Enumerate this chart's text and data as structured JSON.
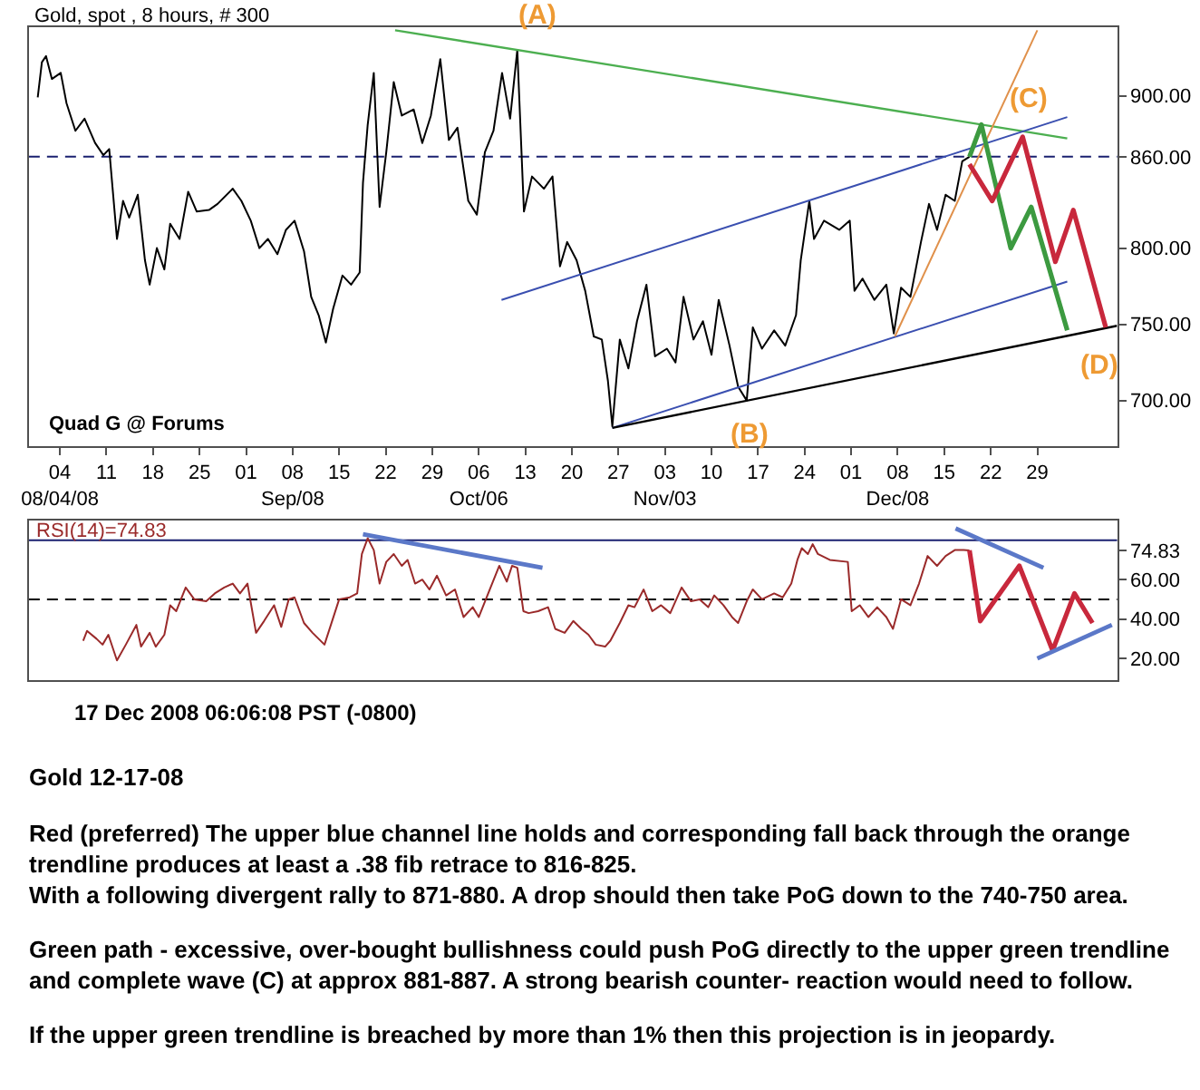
{
  "chart_data": [
    {
      "type": "line",
      "title": "Gold, spot , 8 hours, # 300",
      "xlim": [
        "2008-07-30T08:00",
        "2009-01-10T00:00"
      ],
      "xticks": [
        {
          "value": "2008-08-04",
          "label": "04\n08/04/08"
        },
        {
          "value": "2008-08-11",
          "label": "11"
        },
        {
          "value": "2008-08-18",
          "label": "18"
        },
        {
          "value": "2008-08-25",
          "label": "25"
        },
        {
          "value": "2008-09-01",
          "label": "01"
        },
        {
          "value": "2008-09-08",
          "label": "08\nSep/08"
        },
        {
          "value": "2008-09-15",
          "label": "15"
        },
        {
          "value": "2008-09-22",
          "label": "22"
        },
        {
          "value": "2008-09-29",
          "label": "29"
        },
        {
          "value": "2008-10-06",
          "label": "06\nOct/06"
        },
        {
          "value": "2008-10-13",
          "label": "13"
        },
        {
          "value": "2008-10-20",
          "label": "20"
        },
        {
          "value": "2008-10-27",
          "label": "27"
        },
        {
          "value": "2008-11-03",
          "label": "03\nNov/03"
        },
        {
          "value": "2008-11-10",
          "label": "10"
        },
        {
          "value": "2008-11-17",
          "label": "17"
        },
        {
          "value": "2008-11-24",
          "label": "24"
        },
        {
          "value": "2008-12-01",
          "label": "01"
        },
        {
          "value": "2008-12-08",
          "label": "08\nDec/08"
        },
        {
          "value": "2008-12-15",
          "label": "15"
        },
        {
          "value": "2008-12-22",
          "label": "22"
        },
        {
          "value": "2008-12-29",
          "label": "29"
        }
      ],
      "ylim": [
        670,
        945
      ],
      "yticks": [
        {
          "value": 700,
          "label": "700.00"
        },
        {
          "value": 750,
          "label": "750.00"
        },
        {
          "value": 800,
          "label": "800.00"
        },
        {
          "value": 860,
          "label": "860.00"
        },
        {
          "value": 900,
          "label": "900.00"
        }
      ],
      "ref_lines": [
        {
          "axis": "y",
          "value": 860,
          "color": "#1a2070",
          "line_style": "dashed"
        }
      ],
      "annotations": [
        "Quad G @ Forums",
        {
          "text": "(A)",
          "x": "2008-10-11T19:00",
          "y": 930
        },
        {
          "text": "(B)",
          "x": "2008-11-15T07:00",
          "y": 700
        },
        {
          "text": "(C)",
          "x": "2008-12-26T19:00",
          "y": 873
        },
        {
          "text": "(D)",
          "x": "2009-01-02T12:00",
          "y": 746
        }
      ],
      "series": [
        {
          "color": "#000000",
          "x": [
            "2008-07-31T16:00",
            "2008-08-01T07:00",
            "2008-08-01T22:00",
            "2008-08-02T19:00",
            "2008-08-04T03:00",
            "2008-08-05T00:00",
            "2008-08-06T08:00",
            "2008-08-07T17:00",
            "2008-08-09T07:00",
            "2008-08-10T13:00",
            "2008-08-11T10:00",
            "2008-08-12T14:00",
            "2008-08-13T12:00",
            "2008-08-14T10:00",
            "2008-08-15T17:00",
            "2008-08-16T19:00",
            "2008-08-17T12:00",
            "2008-08-18T14:00",
            "2008-08-19T17:00",
            "2008-08-20T14:00",
            "2008-08-22T00:00",
            "2008-08-23T07:00",
            "2008-08-24T14:00",
            "2008-08-26T10:00",
            "2008-08-27T17:00",
            "2008-08-30T00:00",
            "2008-08-31T07:00",
            "2008-09-01T17:00",
            "2008-09-03T00:00",
            "2008-09-04T07:00",
            "2008-09-05T17:00",
            "2008-09-07T00:00",
            "2008-09-08T07:00",
            "2008-09-09T17:00",
            "2008-09-10T19:00",
            "2008-09-11T22:00",
            "2008-09-13T00:00",
            "2008-09-14T02:00",
            "2008-09-15T12:00",
            "2008-09-16T19:00",
            "2008-09-18T02:00",
            "2008-09-18T14:00",
            "2008-09-19T07:00",
            "2008-09-20T05:00",
            "2008-09-21T02:00",
            "2008-09-22T02:00",
            "2008-09-23T05:00",
            "2008-09-24T10:00",
            "2008-09-26T05:00",
            "2008-09-27T12:00",
            "2008-09-28T19:00",
            "2008-09-30T05:00",
            "2008-10-01T12:00",
            "2008-10-02T19:00",
            "2008-10-04T10:00",
            "2008-10-05T17:00",
            "2008-10-06T22:00",
            "2008-10-08T05:00",
            "2008-10-09T12:00",
            "2008-10-10T17:00",
            "2008-10-11T19:00",
            "2008-10-12T19:00",
            "2008-10-14T00:00",
            "2008-10-15T19:00",
            "2008-10-17T02:00",
            "2008-10-18T05:00",
            "2008-10-19T07:00",
            "2008-10-20T17:00",
            "2008-10-22T00:00",
            "2008-10-23T07:00",
            "2008-10-24T12:00",
            "2008-10-25T10:00",
            "2008-10-26T02:00",
            "2008-10-27T05:00",
            "2008-10-28T12:00",
            "2008-10-29T19:00",
            "2008-10-31T05:00",
            "2008-11-01T12:00",
            "2008-11-03T07:00",
            "2008-11-04T14:00",
            "2008-11-05T19:00",
            "2008-11-07T07:00",
            "2008-11-08T17:00",
            "2008-11-10T00:00",
            "2008-11-11T02:00",
            "2008-11-12T17:00",
            "2008-11-14T00:00",
            "2008-11-15T07:00",
            "2008-11-16T05:00",
            "2008-11-17T14:00",
            "2008-11-19T10:00",
            "2008-11-21T02:00",
            "2008-11-22T17:00",
            "2008-11-23T10:00",
            "2008-11-24T17:00",
            "2008-11-25T10:00",
            "2008-11-26T22:00",
            "2008-11-29T05:00",
            "2008-11-30T19:00",
            "2008-12-01T12:00",
            "2008-12-02T17:00",
            "2008-12-04T12:00",
            "2008-12-06T07:00",
            "2008-12-07T10:00",
            "2008-12-08T12:00",
            "2008-12-09T22:00",
            "2008-12-11T12:00",
            "2008-12-12T17:00",
            "2008-12-13T22:00",
            "2008-12-15T05:00",
            "2008-12-16T14:00",
            "2008-12-17T17:00",
            "2008-12-18T19:00"
          ],
          "values": [
            899,
            922,
            926,
            911,
            915,
            895,
            877,
            885,
            869,
            861,
            865,
            806,
            831,
            820,
            835,
            792,
            776,
            800,
            786,
            816,
            806,
            837,
            824,
            825,
            829,
            839,
            831,
            818,
            800,
            806,
            796,
            812,
            818,
            798,
            768,
            756,
            738,
            760,
            782,
            776,
            784,
            843,
            881,
            915,
            827,
            863,
            909,
            887,
            891,
            869,
            887,
            924,
            871,
            879,
            831,
            822,
            863,
            877,
            915,
            885,
            930,
            824,
            847,
            839,
            847,
            788,
            804,
            792,
            772,
            742,
            740,
            713,
            683,
            740,
            721,
            752,
            776,
            729,
            734,
            725,
            768,
            740,
            752,
            730,
            766,
            736,
            709,
            700,
            748,
            734,
            746,
            736,
            756,
            792,
            831,
            806,
            818,
            812,
            818,
            772,
            780,
            766,
            776,
            744,
            774,
            768,
            804,
            829,
            812,
            835,
            831,
            857,
            860
          ]
        },
        {
          "color": "#4caf50",
          "x": [
            "2008-09-23T10:00",
            "2009-01-02T12:00"
          ],
          "values": [
            943,
            872
          ]
        },
        {
          "color": "#3a4fb0",
          "x": [
            "2008-10-09T10:00",
            "2009-01-02T12:00"
          ],
          "values": [
            766,
            886
          ]
        },
        {
          "color": "#3a4fb0",
          "x": [
            "2008-10-26T02:00",
            "2009-01-02T12:00"
          ],
          "values": [
            682,
            778
          ]
        },
        {
          "color": "#000000",
          "x": [
            "2008-10-26T02:00",
            "2009-01-10T00:00"
          ],
          "values": [
            682,
            749
          ]
        },
        {
          "color": "#e0904a",
          "x": [
            "2008-12-07T14:00",
            "2008-12-29T00:00"
          ],
          "values": [
            742,
            943
          ]
        },
        {
          "color": "#3c9a40",
          "x": [
            "2008-12-18T19:00",
            "2008-12-20T14:00",
            "2008-12-25T00:00",
            "2008-12-28T02:00",
            "2009-01-02T12:00"
          ],
          "values": [
            860,
            881,
            800,
            827,
            746
          ]
        },
        {
          "color": "#c8283c",
          "x": [
            "2008-12-18T19:00",
            "2008-12-22T05:00",
            "2008-12-26T19:00",
            "2008-12-31T17:00",
            "2009-01-03T10:00",
            "2009-01-08T07:00"
          ],
          "values": [
            855,
            831,
            873,
            791,
            825,
            748
          ]
        }
      ]
    },
    {
      "type": "line",
      "title": "RSI(14)=74.83",
      "tick_labels": "y",
      "xlim": [
        "2008-07-30T08:00",
        "2009-01-10T00:00"
      ],
      "ylim": [
        9,
        90
      ],
      "yticks": [
        {
          "value": 20,
          "label": "20.00"
        },
        {
          "value": 40,
          "label": "40.00"
        },
        {
          "value": 60,
          "label": "60.00"
        },
        {
          "value": 74.83,
          "label": "74.83"
        }
      ],
      "ref_lines": [
        {
          "axis": "y",
          "value": 80,
          "color": "#1a2070",
          "line_style": "solid"
        },
        {
          "axis": "y",
          "value": 50,
          "color": "#000000",
          "line_style": "dashed"
        }
      ],
      "annotations": [
        "17 Dec 2008 06:06:08 PST (-0800)",
        "Gold 12-17-08",
        "Red (preferred) The upper blue channel line holds and corresponding fall back through the orange\ntrendline produces at least a .38 fib retrace to 816-825.\nWith a following divergent rally to 871-880. A drop should then take PoG down to the 740-750 area.",
        "Green path - excessive, over-bought bullishness could push PoG directly to the upper green trendline\nand complete wave (C) at approx 881-887. A strong bearish counter- reaction would need to follow.",
        "If the upper green trendline is breached by more than 1% then this projection is in jeopardy."
      ],
      "series": [
        {
          "color": "#9a2a2a",
          "x": [
            "2008-08-07T12:00",
            "2008-08-08T02:00",
            "2008-08-09T12:00",
            "2008-08-10T10:00",
            "2008-08-11T07:00",
            "2008-08-12T14:00",
            "2008-08-13T22:00",
            "2008-08-15T12:00",
            "2008-08-16T05:00",
            "2008-08-17T12:00",
            "2008-08-18T10:00",
            "2008-08-19T17:00",
            "2008-08-20T14:00",
            "2008-08-21T12:00",
            "2008-08-22T22:00",
            "2008-08-24T05:00",
            "2008-08-26T00:00",
            "2008-08-27T07:00",
            "2008-08-28T17:00",
            "2008-08-30T00:00",
            "2008-08-31T02:00",
            "2008-09-01T05:00",
            "2008-09-02T12:00",
            "2008-09-03T17:00",
            "2008-09-05T05:00",
            "2008-09-06T07:00",
            "2008-09-07T10:00",
            "2008-09-08T07:00",
            "2008-09-09T17:00",
            "2008-09-11T00:00",
            "2008-09-12T19:00",
            "2008-09-15T00:00",
            "2008-09-16T14:00",
            "2008-09-17T17:00",
            "2008-09-18T10:00",
            "2008-09-19T07:00",
            "2008-09-20T05:00",
            "2008-09-21T02:00",
            "2008-09-22T02:00",
            "2008-09-23T05:00",
            "2008-09-24T10:00",
            "2008-09-25T07:00",
            "2008-09-26T10:00",
            "2008-09-27T12:00",
            "2008-09-28T14:00",
            "2008-09-29T17:00",
            "2008-10-01T02:00",
            "2008-10-02T10:00",
            "2008-10-03T17:00",
            "2008-10-05T02:00",
            "2008-10-06T00:00",
            "2008-10-07T07:00",
            "2008-10-09T02:00",
            "2008-10-10T05:00",
            "2008-10-11T00:00",
            "2008-10-11T19:00",
            "2008-10-12T17:00",
            "2008-10-13T12:00",
            "2008-10-14T22:00",
            "2008-10-16T10:00",
            "2008-10-17T12:00",
            "2008-10-18T22:00",
            "2008-10-20T05:00",
            "2008-10-21T10:00",
            "2008-10-22T12:00",
            "2008-10-23T14:00",
            "2008-10-25T00:00",
            "2008-10-25T19:00",
            "2008-10-27T05:00",
            "2008-10-28T12:00",
            "2008-10-29T10:00",
            "2008-10-30T19:00",
            "2008-11-01T02:00",
            "2008-11-02T10:00",
            "2008-11-03T19:00",
            "2008-11-05T12:00",
            "2008-11-06T22:00",
            "2008-11-08T05:00",
            "2008-11-09T12:00",
            "2008-11-10T10:00",
            "2008-11-11T19:00",
            "2008-11-13T02:00",
            "2008-11-14T00:00",
            "2008-11-15T07:00",
            "2008-11-16T05:00",
            "2008-11-17T14:00",
            "2008-11-19T10:00",
            "2008-11-20T17:00",
            "2008-11-22T00:00",
            "2008-11-22T22:00",
            "2008-11-23T14:00",
            "2008-11-24T12:00",
            "2008-11-25T05:00",
            "2008-11-26T00:00",
            "2008-11-27T19:00",
            "2008-11-30T12:00",
            "2008-12-01T02:00",
            "2008-12-02T07:00",
            "2008-12-03T14:00",
            "2008-12-04T22:00",
            "2008-12-06T07:00",
            "2008-12-07T07:00",
            "2008-12-08T12:00",
            "2008-12-09T22:00",
            "2008-12-11T05:00",
            "2008-12-12T12:00",
            "2008-12-13T22:00",
            "2008-12-15T05:00",
            "2008-12-16T14:00",
            "2008-12-17T22:00",
            "2008-12-18T19:00"
          ],
          "values": [
            29,
            34,
            30,
            27,
            32,
            19,
            27,
            37,
            26,
            33,
            26,
            32,
            47,
            44,
            56,
            50,
            49,
            53,
            56,
            58,
            53,
            58,
            33,
            39,
            47,
            36,
            50,
            51,
            38,
            33,
            27,
            50,
            51,
            53,
            73,
            81,
            75,
            58,
            69,
            73,
            67,
            70,
            58,
            60,
            55,
            62,
            52,
            55,
            41,
            46,
            41,
            52,
            67,
            59,
            67,
            66,
            44,
            43,
            44,
            46,
            35,
            33,
            39,
            35,
            32,
            27,
            26,
            29,
            38,
            47,
            46,
            55,
            44,
            47,
            43,
            56,
            49,
            50,
            46,
            52,
            47,
            41,
            38,
            49,
            55,
            50,
            53,
            51,
            58,
            70,
            76,
            73,
            78,
            73,
            70,
            69,
            44,
            47,
            41,
            46,
            41,
            35,
            50,
            47,
            58,
            72,
            67,
            72,
            75,
            75,
            74.83
          ]
        },
        {
          "color": "#c8283c",
          "x": [
            "2008-12-18T19:00",
            "2008-12-20T10:00",
            "2008-12-26T07:00",
            "2008-12-31T07:00",
            "2009-01-03T14:00",
            "2009-01-06T07:00"
          ],
          "values": [
            74.83,
            39,
            67,
            24,
            53,
            38
          ]
        },
        {
          "color": "#5b78c8",
          "x": [
            "2008-09-18T14:00",
            "2008-10-15T14:00"
          ],
          "values": [
            83,
            66
          ]
        },
        {
          "color": "#5b78c8",
          "x": [
            "2008-12-16T17:00",
            "2008-12-29T22:00"
          ],
          "values": [
            86,
            66
          ]
        },
        {
          "color": "#5b78c8",
          "x": [
            "2008-12-29T00:00",
            "2009-01-09T05:00"
          ],
          "values": [
            20,
            37
          ]
        }
      ]
    }
  ]
}
